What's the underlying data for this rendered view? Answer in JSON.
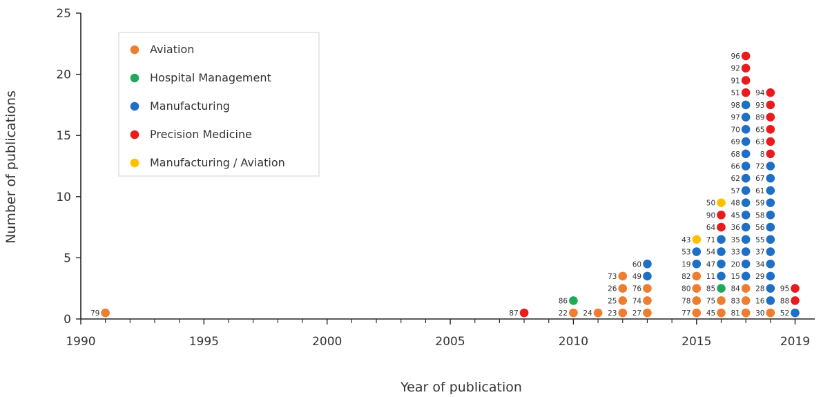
{
  "chart_data": {
    "type": "scatter",
    "title": "",
    "xlabel": "Year of publication",
    "ylabel": "Number of publications",
    "xlim": [
      1990,
      2019.8
    ],
    "ylim": [
      0,
      25
    ],
    "x_ticks": [
      1990,
      1995,
      2000,
      2005,
      2010,
      2015,
      2019
    ],
    "y_ticks": [
      0,
      5,
      10,
      15,
      20,
      25
    ],
    "grid": false,
    "legend_placement": "top-left",
    "colors": {
      "Aviation": "#ED7D31",
      "Hospital Management": "#1FAA59",
      "Manufacturing": "#1F6FC5",
      "Precision Medicine": "#E81C1C",
      "Manufacturing / Aviation": "#FFC000"
    },
    "legend": [
      "Aviation",
      "Hospital Management",
      "Manufacturing",
      "Precision Medicine",
      "Manufacturing / Aviation"
    ],
    "columns": [
      {
        "x": 1991,
        "points": [
          {
            "label": "79",
            "cat": "Aviation"
          }
        ]
      },
      {
        "x": 2008,
        "points": [
          {
            "label": "87",
            "cat": "Precision Medicine"
          }
        ]
      },
      {
        "x": 2010,
        "points": [
          {
            "label": "22",
            "cat": "Aviation"
          },
          {
            "label": "86",
            "cat": "Hospital Management"
          }
        ]
      },
      {
        "x": 2011,
        "points": [
          {
            "label": "24",
            "cat": "Aviation"
          }
        ]
      },
      {
        "x": 2012,
        "points": [
          {
            "label": "23",
            "cat": "Aviation"
          },
          {
            "label": "25",
            "cat": "Aviation"
          },
          {
            "label": "26",
            "cat": "Aviation"
          },
          {
            "label": "73",
            "cat": "Aviation"
          }
        ]
      },
      {
        "x": 2013,
        "points": [
          {
            "label": "27",
            "cat": "Aviation"
          },
          {
            "label": "74",
            "cat": "Aviation"
          },
          {
            "label": "76",
            "cat": "Aviation"
          },
          {
            "label": "49",
            "cat": "Manufacturing"
          },
          {
            "label": "60",
            "cat": "Manufacturing"
          }
        ]
      },
      {
        "x": 2015,
        "points": [
          {
            "label": "77",
            "cat": "Aviation"
          },
          {
            "label": "78",
            "cat": "Aviation"
          },
          {
            "label": "80",
            "cat": "Aviation"
          },
          {
            "label": "82",
            "cat": "Aviation"
          },
          {
            "label": "19",
            "cat": "Manufacturing"
          },
          {
            "label": "53",
            "cat": "Manufacturing"
          },
          {
            "label": "43",
            "cat": "Manufacturing / Aviation"
          }
        ]
      },
      {
        "x": 2016,
        "points": [
          {
            "label": "45",
            "cat": "Aviation"
          },
          {
            "label": "75",
            "cat": "Aviation"
          },
          {
            "label": "85",
            "cat": "Hospital Management"
          },
          {
            "label": "11",
            "cat": "Manufacturing"
          },
          {
            "label": "47",
            "cat": "Manufacturing"
          },
          {
            "label": "54",
            "cat": "Manufacturing"
          },
          {
            "label": "71",
            "cat": "Manufacturing"
          },
          {
            "label": "64",
            "cat": "Precision Medicine"
          },
          {
            "label": "90",
            "cat": "Precision Medicine"
          },
          {
            "label": "50",
            "cat": "Manufacturing / Aviation"
          }
        ]
      },
      {
        "x": 2017,
        "points": [
          {
            "label": "81",
            "cat": "Aviation"
          },
          {
            "label": "83",
            "cat": "Aviation"
          },
          {
            "label": "84",
            "cat": "Aviation"
          },
          {
            "label": "15",
            "cat": "Manufacturing"
          },
          {
            "label": "20",
            "cat": "Manufacturing"
          },
          {
            "label": "33",
            "cat": "Manufacturing"
          },
          {
            "label": "35",
            "cat": "Manufacturing"
          },
          {
            "label": "36",
            "cat": "Manufacturing"
          },
          {
            "label": "45",
            "cat": "Manufacturing"
          },
          {
            "label": "48",
            "cat": "Manufacturing"
          },
          {
            "label": "57",
            "cat": "Manufacturing"
          },
          {
            "label": "62",
            "cat": "Manufacturing"
          },
          {
            "label": "66",
            "cat": "Manufacturing"
          },
          {
            "label": "68",
            "cat": "Manufacturing"
          },
          {
            "label": "69",
            "cat": "Manufacturing"
          },
          {
            "label": "70",
            "cat": "Manufacturing"
          },
          {
            "label": "97",
            "cat": "Manufacturing"
          },
          {
            "label": "98",
            "cat": "Manufacturing"
          },
          {
            "label": "51",
            "cat": "Precision Medicine"
          },
          {
            "label": "91",
            "cat": "Precision Medicine"
          },
          {
            "label": "92",
            "cat": "Precision Medicine"
          },
          {
            "label": "96",
            "cat": "Precision Medicine"
          }
        ]
      },
      {
        "x": 2018,
        "points": [
          {
            "label": "30",
            "cat": "Aviation"
          },
          {
            "label": "16",
            "cat": "Manufacturing"
          },
          {
            "label": "28",
            "cat": "Manufacturing"
          },
          {
            "label": "29",
            "cat": "Manufacturing"
          },
          {
            "label": "34",
            "cat": "Manufacturing"
          },
          {
            "label": "37",
            "cat": "Manufacturing"
          },
          {
            "label": "55",
            "cat": "Manufacturing"
          },
          {
            "label": "56",
            "cat": "Manufacturing"
          },
          {
            "label": "58",
            "cat": "Manufacturing"
          },
          {
            "label": "59",
            "cat": "Manufacturing"
          },
          {
            "label": "61",
            "cat": "Manufacturing"
          },
          {
            "label": "67",
            "cat": "Manufacturing"
          },
          {
            "label": "72",
            "cat": "Manufacturing"
          },
          {
            "label": "8",
            "cat": "Precision Medicine"
          },
          {
            "label": "63",
            "cat": "Precision Medicine"
          },
          {
            "label": "65",
            "cat": "Precision Medicine"
          },
          {
            "label": "89",
            "cat": "Precision Medicine"
          },
          {
            "label": "93",
            "cat": "Precision Medicine"
          },
          {
            "label": "94",
            "cat": "Precision Medicine"
          }
        ]
      },
      {
        "x": 2019,
        "points": [
          {
            "label": "52",
            "cat": "Manufacturing"
          },
          {
            "label": "88",
            "cat": "Precision Medicine"
          },
          {
            "label": "95",
            "cat": "Precision Medicine"
          }
        ]
      }
    ]
  }
}
